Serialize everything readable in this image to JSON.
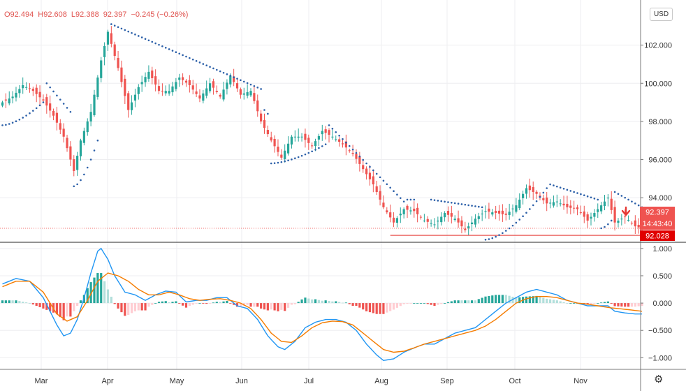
{
  "legend": {
    "open": "O92.494",
    "high": "H92.608",
    "low": "L92.388",
    "close": "92.397",
    "change": "−0.245 (−0.26%)"
  },
  "currency_button": "USD",
  "settings_icon": "gear-icon",
  "price_badge": {
    "last": "92.397",
    "countdown": "14:43:40",
    "level": "92.028"
  },
  "colors": {
    "up": "#26a69a",
    "down": "#ef5350",
    "sar": "#2b5fa8",
    "macd": "#2196f3",
    "signal": "#f57c00",
    "line": "#e53935",
    "hist_up": "#26a69a",
    "hist_up_light": "#b2dfdb",
    "hist_down": "#ef5350",
    "hist_down_light": "#ffcdd2"
  },
  "chart_data": [
    {
      "type": "candlestick",
      "y_ticks": [
        "102.000",
        "100.000",
        "98.000",
        "96.000",
        "94.000"
      ],
      "ylim": [
        91.7,
        104.0
      ],
      "x_ticks": [
        "Mar",
        "Apr",
        "May",
        "Jun",
        "Jul",
        "Aug",
        "Sep",
        "Oct",
        "Nov"
      ],
      "last_price": 92.397,
      "horizontal_line": 92.028,
      "close_anchors": [
        [
          0,
          99.0
        ],
        [
          3,
          99.3
        ],
        [
          6,
          99.9
        ],
        [
          9,
          99.6
        ],
        [
          12,
          99.1
        ],
        [
          15,
          98.3
        ],
        [
          18,
          97.2
        ],
        [
          21,
          95.4
        ],
        [
          23,
          97.0
        ],
        [
          26,
          98.5
        ],
        [
          29,
          101.2
        ],
        [
          31,
          102.7
        ],
        [
          34,
          100.8
        ],
        [
          37,
          98.6
        ],
        [
          40,
          99.8
        ],
        [
          43,
          100.6
        ],
        [
          46,
          99.6
        ],
        [
          49,
          99.6
        ],
        [
          52,
          100.3
        ],
        [
          55,
          99.9
        ],
        [
          58,
          99.2
        ],
        [
          61,
          100.0
        ],
        [
          64,
          99.3
        ],
        [
          67,
          100.4
        ],
        [
          70,
          99.4
        ],
        [
          73,
          99.6
        ],
        [
          76,
          98.0
        ],
        [
          79,
          97.0
        ],
        [
          82,
          96.1
        ],
        [
          85,
          97.2
        ],
        [
          88,
          97.2
        ],
        [
          91,
          96.7
        ],
        [
          94,
          97.5
        ],
        [
          97,
          97.2
        ],
        [
          100,
          96.8
        ],
        [
          103,
          96.3
        ],
        [
          106,
          95.5
        ],
        [
          109,
          94.7
        ],
        [
          112,
          93.5
        ],
        [
          115,
          92.7
        ],
        [
          118,
          93.4
        ],
        [
          121,
          93.3
        ],
        [
          124,
          92.8
        ],
        [
          127,
          92.6
        ],
        [
          130,
          93.2
        ],
        [
          133,
          92.9
        ],
        [
          136,
          92.3
        ],
        [
          139,
          92.9
        ],
        [
          142,
          93.3
        ],
        [
          145,
          93.2
        ],
        [
          148,
          93.1
        ],
        [
          151,
          93.6
        ],
        [
          154,
          94.5
        ],
        [
          157,
          94.2
        ],
        [
          160,
          93.7
        ],
        [
          163,
          93.8
        ],
        [
          166,
          93.5
        ],
        [
          169,
          93.4
        ],
        [
          172,
          92.8
        ],
        [
          175,
          93.4
        ],
        [
          178,
          94.0
        ],
        [
          180,
          92.7
        ],
        [
          183,
          93.0
        ],
        [
          186,
          92.5
        ],
        [
          188,
          92.397
        ]
      ],
      "sar_segments": [
        {
          "dir": "below",
          "from": 0,
          "to": 12,
          "start": 97.8,
          "end": 99.0
        },
        {
          "dir": "above",
          "from": 13,
          "to": 20,
          "start": 100.0,
          "end": 98.5
        },
        {
          "dir": "below",
          "from": 21,
          "to": 28,
          "start": 94.6,
          "end": 97.0
        },
        {
          "dir": "above",
          "from": 32,
          "to": 76,
          "start": 103.1,
          "end": 99.7
        },
        {
          "dir": "above",
          "from": 77,
          "to": 78,
          "start": 98.6,
          "end": 98.4
        },
        {
          "dir": "below",
          "from": 79,
          "to": 95,
          "start": 95.8,
          "end": 96.8
        },
        {
          "dir": "above",
          "from": 96,
          "to": 118,
          "start": 97.8,
          "end": 93.8
        },
        {
          "dir": "above",
          "from": 119,
          "to": 121,
          "start": 93.9,
          "end": 93.9
        },
        {
          "dir": "above",
          "from": 126,
          "to": 141,
          "start": 93.9,
          "end": 93.5
        },
        {
          "dir": "below",
          "from": 142,
          "to": 160,
          "start": 91.8,
          "end": 94.5
        },
        {
          "dir": "above",
          "from": 161,
          "to": 175,
          "start": 94.7,
          "end": 93.9
        },
        {
          "dir": "below",
          "from": 176,
          "to": 179,
          "start": 92.4,
          "end": 92.8
        },
        {
          "dir": "above",
          "from": 180,
          "to": 188,
          "start": 94.3,
          "end": 93.5
        }
      ]
    },
    {
      "type": "macd",
      "y_ticks": [
        "1.000",
        "0.500",
        "0.000",
        "−0.500",
        "−1.000"
      ],
      "ylim": [
        -1.2,
        1.1
      ],
      "macd_anchors": [
        [
          0,
          0.35
        ],
        [
          4,
          0.45
        ],
        [
          8,
          0.4
        ],
        [
          12,
          0.1
        ],
        [
          16,
          -0.4
        ],
        [
          18,
          -0.6
        ],
        [
          20,
          -0.55
        ],
        [
          22,
          -0.3
        ],
        [
          24,
          0.1
        ],
        [
          26,
          0.55
        ],
        [
          28,
          0.95
        ],
        [
          29,
          1.0
        ],
        [
          31,
          0.8
        ],
        [
          33,
          0.5
        ],
        [
          36,
          0.2
        ],
        [
          39,
          0.15
        ],
        [
          42,
          0.05
        ],
        [
          45,
          0.15
        ],
        [
          48,
          0.22
        ],
        [
          51,
          0.2
        ],
        [
          54,
          0.02
        ],
        [
          57,
          0.05
        ],
        [
          60,
          0.05
        ],
        [
          63,
          0.1
        ],
        [
          66,
          0.1
        ],
        [
          69,
          -0.05
        ],
        [
          72,
          -0.1
        ],
        [
          75,
          -0.3
        ],
        [
          78,
          -0.6
        ],
        [
          81,
          -0.8
        ],
        [
          83,
          -0.85
        ],
        [
          86,
          -0.7
        ],
        [
          89,
          -0.45
        ],
        [
          92,
          -0.35
        ],
        [
          95,
          -0.3
        ],
        [
          98,
          -0.3
        ],
        [
          101,
          -0.35
        ],
        [
          104,
          -0.5
        ],
        [
          107,
          -0.75
        ],
        [
          110,
          -0.95
        ],
        [
          112,
          -1.05
        ],
        [
          115,
          -1.02
        ],
        [
          118,
          -0.9
        ],
        [
          121,
          -0.82
        ],
        [
          124,
          -0.75
        ],
        [
          127,
          -0.75
        ],
        [
          130,
          -0.65
        ],
        [
          133,
          -0.55
        ],
        [
          136,
          -0.5
        ],
        [
          139,
          -0.45
        ],
        [
          142,
          -0.3
        ],
        [
          145,
          -0.15
        ],
        [
          148,
          0.0
        ],
        [
          151,
          0.1
        ],
        [
          154,
          0.2
        ],
        [
          157,
          0.25
        ],
        [
          160,
          0.2
        ],
        [
          163,
          0.15
        ],
        [
          166,
          0.05
        ],
        [
          169,
          0.0
        ],
        [
          172,
          -0.05
        ],
        [
          175,
          -0.05
        ],
        [
          178,
          -0.05
        ],
        [
          180,
          -0.15
        ],
        [
          183,
          -0.18
        ],
        [
          186,
          -0.2
        ],
        [
          188,
          -0.2
        ]
      ],
      "signal_anchors": [
        [
          0,
          0.3
        ],
        [
          4,
          0.4
        ],
        [
          8,
          0.4
        ],
        [
          12,
          0.2
        ],
        [
          16,
          -0.2
        ],
        [
          19,
          -0.33
        ],
        [
          22,
          -0.25
        ],
        [
          25,
          0.05
        ],
        [
          28,
          0.4
        ],
        [
          31,
          0.55
        ],
        [
          34,
          0.5
        ],
        [
          37,
          0.4
        ],
        [
          40,
          0.25
        ],
        [
          43,
          0.15
        ],
        [
          46,
          0.15
        ],
        [
          49,
          0.2
        ],
        [
          52,
          0.15
        ],
        [
          55,
          0.08
        ],
        [
          58,
          0.05
        ],
        [
          61,
          0.07
        ],
        [
          64,
          0.08
        ],
        [
          67,
          0.05
        ],
        [
          70,
          0.0
        ],
        [
          73,
          -0.1
        ],
        [
          76,
          -0.3
        ],
        [
          79,
          -0.55
        ],
        [
          82,
          -0.7
        ],
        [
          85,
          -0.72
        ],
        [
          88,
          -0.6
        ],
        [
          91,
          -0.45
        ],
        [
          94,
          -0.36
        ],
        [
          97,
          -0.33
        ],
        [
          100,
          -0.34
        ],
        [
          103,
          -0.4
        ],
        [
          106,
          -0.55
        ],
        [
          109,
          -0.7
        ],
        [
          112,
          -0.85
        ],
        [
          115,
          -0.9
        ],
        [
          118,
          -0.88
        ],
        [
          121,
          -0.82
        ],
        [
          124,
          -0.75
        ],
        [
          127,
          -0.7
        ],
        [
          130,
          -0.65
        ],
        [
          133,
          -0.6
        ],
        [
          136,
          -0.55
        ],
        [
          139,
          -0.5
        ],
        [
          142,
          -0.42
        ],
        [
          145,
          -0.3
        ],
        [
          148,
          -0.15
        ],
        [
          151,
          0.0
        ],
        [
          154,
          0.08
        ],
        [
          157,
          0.12
        ],
        [
          160,
          0.12
        ],
        [
          163,
          0.1
        ],
        [
          166,
          0.05
        ],
        [
          169,
          0.0
        ],
        [
          172,
          -0.02
        ],
        [
          175,
          -0.05
        ],
        [
          178,
          -0.08
        ],
        [
          181,
          -0.1
        ],
        [
          184,
          -0.12
        ],
        [
          188,
          -0.15
        ]
      ]
    }
  ]
}
